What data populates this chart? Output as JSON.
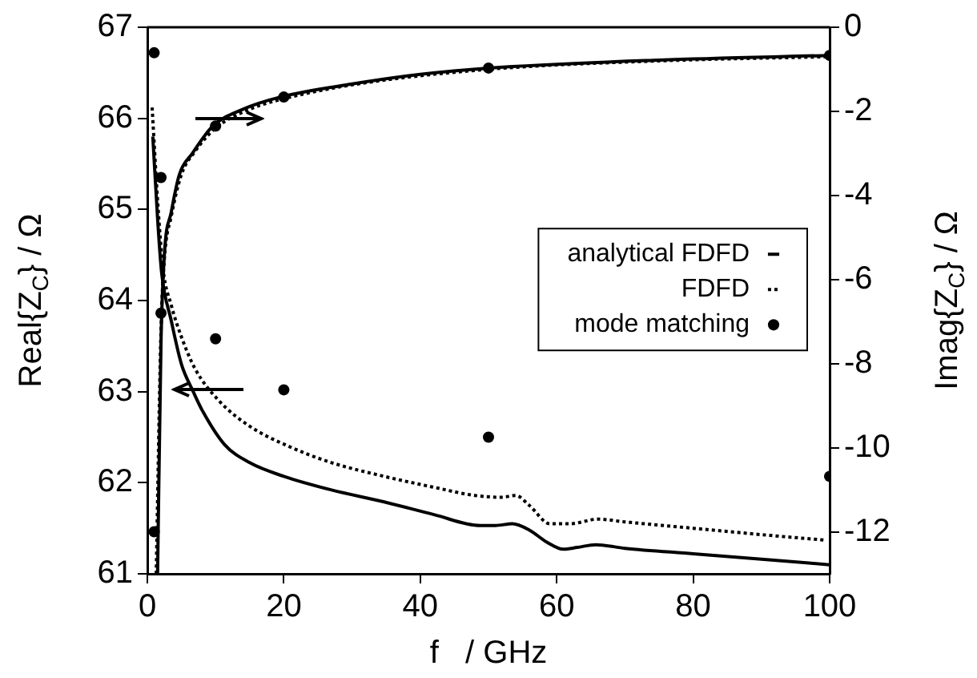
{
  "chart_data": {
    "type": "line",
    "xlabel": "f   / GHz",
    "ylabel": "Real{Z$_{C}$} / Ω",
    "y2label": "Imag{Z$_{C}$} / Ω",
    "xlim": [
      0,
      100
    ],
    "xticks": [
      0,
      20,
      40,
      60,
      80,
      100
    ],
    "ylim": [
      61,
      67
    ],
    "yticks": [
      61,
      62,
      63,
      64,
      65,
      66,
      67
    ],
    "y2lim": [
      -13,
      0
    ],
    "y2ticks": [
      0,
      -2,
      -4,
      -6,
      -8,
      -10,
      -12
    ],
    "grid": false,
    "legend": "right",
    "series": [
      {
        "name": "analytical FDFD",
        "type": "line",
        "line_style": "solid",
        "marker": "none",
        "color": "#000000",
        "x": [
          0.8,
          1.5,
          2.1,
          3.5,
          5,
          6.6,
          8,
          11.3,
          15,
          20,
          27,
          34.7,
          42,
          48.8,
          51,
          53.5,
          56,
          58.5,
          61,
          63,
          65.7,
          70,
          80,
          90,
          100
        ],
        "values": [
          65.8,
          64.9,
          64.3,
          63.78,
          63.3,
          63.02,
          62.8,
          62.42,
          62.22,
          62.07,
          61.92,
          61.79,
          61.65,
          61.53,
          61.53,
          61.55,
          61.48,
          61.35,
          61.27,
          61.29,
          61.32,
          61.28,
          61.22,
          61.16,
          61.1
        ]
      },
      {
        "name": "FDFD",
        "type": "line",
        "line_style": "dotted",
        "marker": "none",
        "color": "#000000",
        "x": [
          0.7,
          1.5,
          2.3,
          3.5,
          5,
          7,
          10.5,
          15,
          20.7,
          27,
          34.7,
          42,
          48,
          51.9,
          54,
          56,
          59,
          62,
          66,
          70,
          80,
          90,
          99.3
        ],
        "values": [
          66.12,
          65.1,
          64.35,
          63.95,
          63.6,
          63.25,
          62.9,
          62.62,
          62.4,
          62.22,
          62.07,
          61.95,
          61.86,
          61.84,
          61.86,
          61.75,
          61.55,
          61.55,
          61.6,
          61.57,
          61.5,
          61.43,
          61.37
        ]
      },
      {
        "name": "mode matching",
        "type": "scatter",
        "marker": "circle",
        "color": "#000000",
        "x": [
          1,
          2,
          10,
          20,
          50,
          100
        ],
        "values": [
          66.72,
          65.35,
          63.58,
          63.02,
          62.5,
          62.07
        ]
      },
      {
        "type": "line",
        "axis": "y2",
        "line_style": "solid",
        "marker": "none",
        "color": "#000000",
        "x": [
          1.5,
          2,
          2.5,
          3.5,
          4.7,
          6.6,
          9.6,
          14,
          19.5,
          30,
          40,
          50,
          75,
          100
        ],
        "values": [
          -13,
          -7.5,
          -5.4,
          -4.4,
          -3.5,
          -3.0,
          -2.35,
          -1.95,
          -1.66,
          -1.35,
          -1.12,
          -0.97,
          -0.78,
          -0.67
        ]
      },
      {
        "type": "line",
        "axis": "y2",
        "line_style": "dotted",
        "marker": "none",
        "color": "#000000",
        "x": [
          1.3,
          2,
          2.5,
          3.5,
          5,
          7,
          10,
          15,
          20,
          30,
          50,
          75,
          100
        ],
        "values": [
          -13,
          -7.2,
          -5.5,
          -4.5,
          -3.5,
          -2.95,
          -2.4,
          -1.95,
          -1.7,
          -1.37,
          -1.0,
          -0.8,
          -0.7
        ]
      },
      {
        "type": "scatter",
        "axis": "y2",
        "marker": "circle",
        "color": "#000000",
        "x": [
          1,
          2,
          10,
          20,
          50,
          100
        ],
        "values": [
          -12.0,
          -6.8,
          -2.35,
          -1.66,
          -0.97,
          -0.67
        ]
      }
    ]
  }
}
